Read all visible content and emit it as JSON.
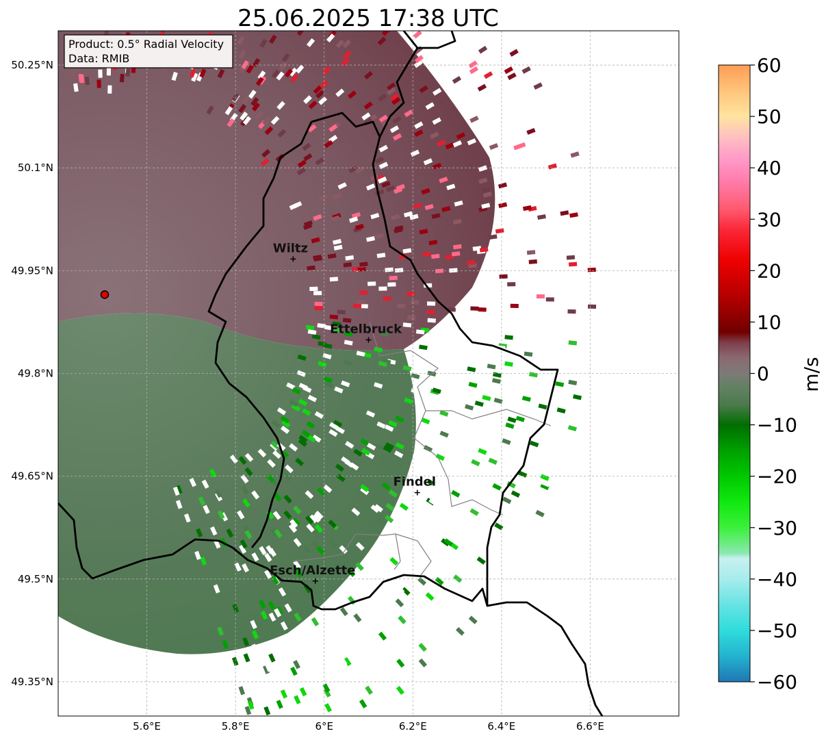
{
  "title": "25.06.2025 17:38 UTC",
  "info_box": {
    "product": "Product: 0.5° Radial Velocity",
    "data_source": "Data: RMIB"
  },
  "axes": {
    "lon_ticks": [
      "5.6°E",
      "5.8°E",
      "6°E",
      "6.2°E",
      "6.4°E",
      "6.6°E"
    ],
    "lat_ticks": [
      "50.25°N",
      "50.1°N",
      "49.95°N",
      "49.8°N",
      "49.65°N",
      "49.5°N",
      "49.35°N"
    ],
    "lon_range": [
      5.4,
      6.8
    ],
    "lat_range": [
      49.3,
      50.3
    ]
  },
  "cities": [
    {
      "name": "Wiltz",
      "lon": 5.93,
      "lat": 49.967
    },
    {
      "name": "Ettelbruck",
      "lon": 6.1,
      "lat": 49.849
    },
    {
      "name": "Findel",
      "lon": 6.21,
      "lat": 49.626
    },
    {
      "name": "Esch/Alzette",
      "lon": 5.98,
      "lat": 49.497
    }
  ],
  "radar_site": {
    "lon": 5.505,
    "lat": 49.915,
    "color": "#e00000"
  },
  "colorbar": {
    "unit": "m/s",
    "min": -60,
    "max": 60,
    "tick_labels": [
      "60",
      "50",
      "40",
      "30",
      "20",
      "10",
      "0",
      "−10",
      "−20",
      "−30",
      "−40",
      "−50",
      "−60"
    ],
    "stops": [
      {
        "v": -60,
        "c": "#1f77b4"
      },
      {
        "v": -55,
        "c": "#23b3cf"
      },
      {
        "v": -50,
        "c": "#2fdcdc"
      },
      {
        "v": -45,
        "c": "#67e3e3"
      },
      {
        "v": -40,
        "c": "#a6ecec"
      },
      {
        "v": -36,
        "c": "#c8f0f0"
      },
      {
        "v": -35,
        "c": "#8ce8b0"
      },
      {
        "v": -30,
        "c": "#3cf03c"
      },
      {
        "v": -25,
        "c": "#10e810"
      },
      {
        "v": -20,
        "c": "#00c800"
      },
      {
        "v": -15,
        "c": "#00a000"
      },
      {
        "v": -10,
        "c": "#006e00"
      },
      {
        "v": -6,
        "c": "#4d7a4d"
      },
      {
        "v": -3,
        "c": "#5f8160"
      },
      {
        "v": 0,
        "c": "#7d7a78"
      },
      {
        "v": 3,
        "c": "#8a6a72"
      },
      {
        "v": 6,
        "c": "#7e3f4a"
      },
      {
        "v": 8,
        "c": "#700000"
      },
      {
        "v": 15,
        "c": "#b40000"
      },
      {
        "v": 22,
        "c": "#ee0000"
      },
      {
        "v": 28,
        "c": "#fa2838"
      },
      {
        "v": 32,
        "c": "#ff5a70"
      },
      {
        "v": 38,
        "c": "#ff80b0"
      },
      {
        "v": 42,
        "c": "#ff9cc8"
      },
      {
        "v": 46,
        "c": "#ffc0c0"
      },
      {
        "v": 50,
        "c": "#ffe4a0"
      },
      {
        "v": 55,
        "c": "#ffc47a"
      },
      {
        "v": 60,
        "c": "#ff9c55"
      }
    ]
  },
  "colors": {
    "inbound_fill": "#5a7e5c",
    "outbound_fill": "#7b5460",
    "border": "#000000",
    "gridline": "#b0b0b0"
  }
}
